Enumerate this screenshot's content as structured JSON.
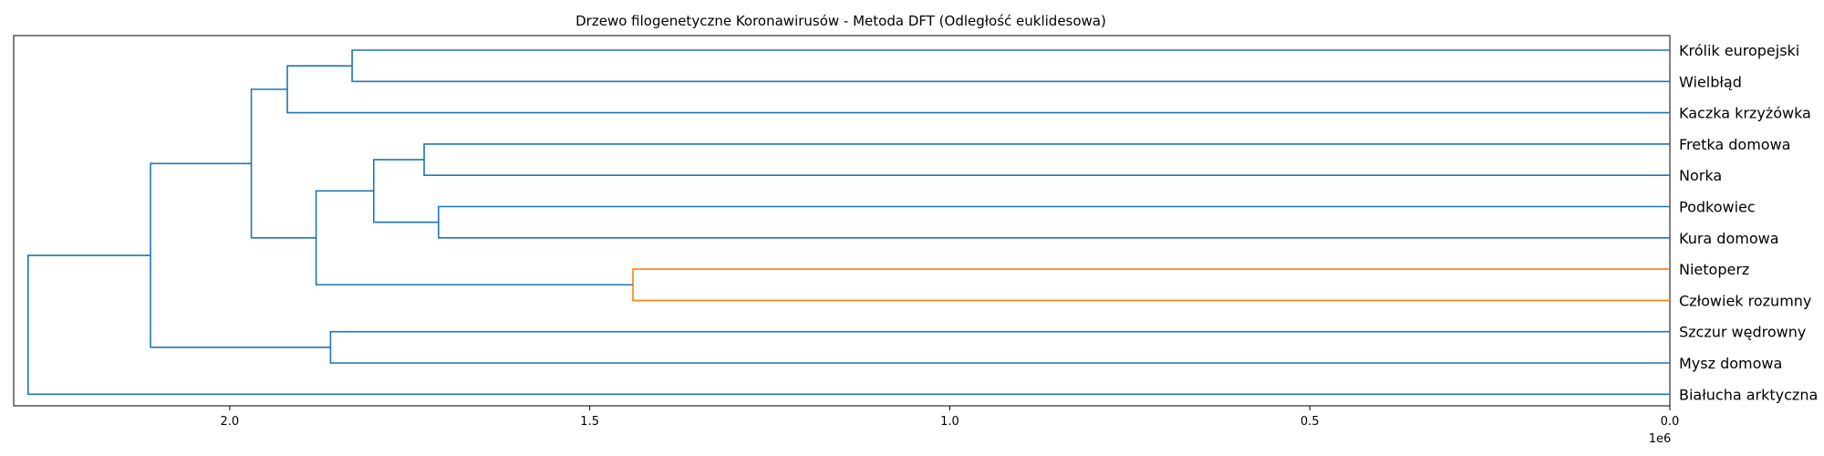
{
  "chart_data": {
    "type": "dendrogram",
    "title": "Drzewo filogenetyczne Koronawirusów - Metoda DFT (Odległość euklidesowa)",
    "orientation": "left",
    "xlim": [
      2300000.0,
      0
    ],
    "x_ticks": [
      2000000.0,
      1500000.0,
      1000000.0,
      500000.0,
      0
    ],
    "x_tick_labels": [
      "2.0",
      "1.5",
      "1.0",
      "0.5",
      "0.0"
    ],
    "x_offset_label": "1e6",
    "grid": false,
    "leaves": [
      "Królik europejski",
      "Wielbłąd",
      "Kaczka krzyżówka",
      "Fretka domowa",
      "Norka",
      "Podkowiec",
      "Kura domowa",
      "Nietoperz",
      "Człowiek rozumny",
      "Szczur wędrowny",
      "Mysz domowa",
      "Białucha arktyczna"
    ],
    "merges": [
      {
        "left": "L0",
        "right": "L1",
        "height": 1830000.0,
        "color": "#1f77b4"
      },
      {
        "left": "M0",
        "right": "L2",
        "height": 1920000.0,
        "color": "#1f77b4"
      },
      {
        "left": "L3",
        "right": "L4",
        "height": 1730000.0,
        "color": "#1f77b4"
      },
      {
        "left": "L5",
        "right": "L6",
        "height": 1710000.0,
        "color": "#1f77b4"
      },
      {
        "left": "M2",
        "right": "M3",
        "height": 1800000.0,
        "color": "#1f77b4"
      },
      {
        "left": "L7",
        "right": "L8",
        "height": 1440000.0,
        "color": "#ff7f0e"
      },
      {
        "left": "M4",
        "right": "M5",
        "height": 1880000.0,
        "color": "#1f77b4"
      },
      {
        "left": "M1",
        "right": "M6",
        "height": 1970000.0,
        "color": "#1f77b4"
      },
      {
        "left": "L9",
        "right": "L10",
        "height": 1860000.0,
        "color": "#1f77b4"
      },
      {
        "left": "M7",
        "right": "M8",
        "height": 2110000.0,
        "color": "#1f77b4"
      },
      {
        "left": "M9",
        "right": "L11",
        "height": 2280000.0,
        "color": "#1f77b4"
      }
    ]
  }
}
